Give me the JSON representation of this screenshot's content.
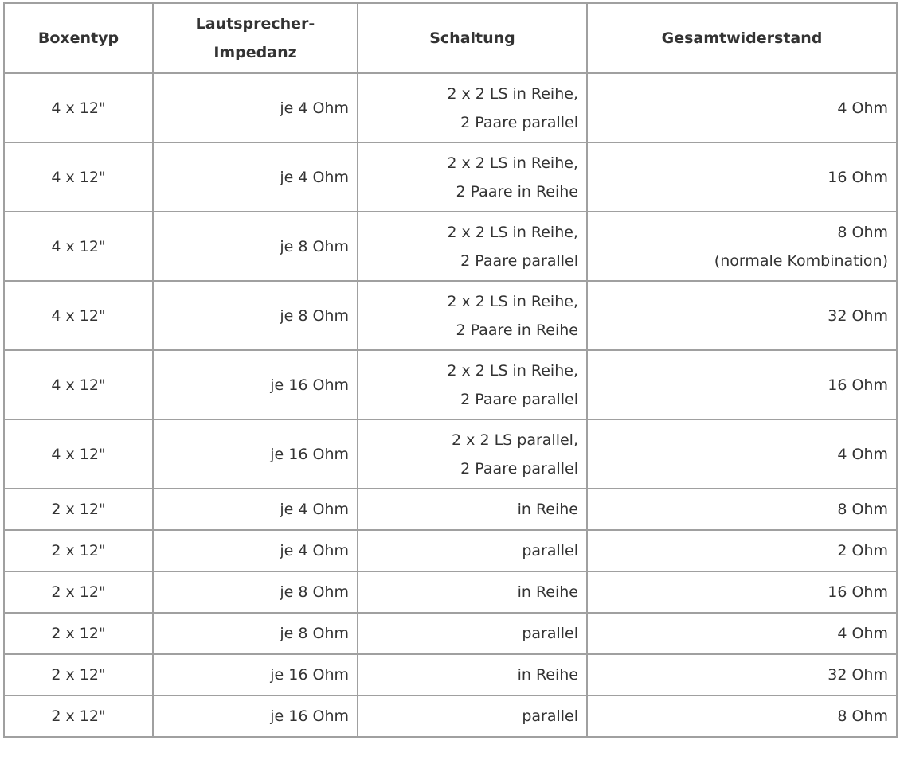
{
  "table": {
    "headers": [
      "Boxentyp",
      "Lautsprecher-\nImpedanz",
      "Schaltung",
      "Gesamtwiderstand"
    ],
    "rows": [
      [
        "4 x 12\"",
        "je 4 Ohm",
        "2 x 2 LS in Reihe,\n2 Paare parallel",
        "4 Ohm"
      ],
      [
        "4 x 12\"",
        "je 4 Ohm",
        "2 x 2 LS in Reihe,\n2 Paare in Reihe",
        "16 Ohm"
      ],
      [
        "4 x 12\"",
        "je 8 Ohm",
        "2 x 2 LS in Reihe,\n2 Paare parallel",
        "8 Ohm\n(normale Kombination)"
      ],
      [
        "4 x 12\"",
        "je 8 Ohm",
        "2 x 2 LS in Reihe,\n2 Paare in Reihe",
        "32 Ohm"
      ],
      [
        "4 x 12\"",
        "je 16 Ohm",
        "2 x 2 LS in Reihe,\n2 Paare parallel",
        "16 Ohm"
      ],
      [
        "4 x 12\"",
        "je 16 Ohm",
        "2 x 2 LS parallel,\n2 Paare parallel",
        "4 Ohm"
      ],
      [
        "2 x 12\"",
        "je 4 Ohm",
        "in Reihe",
        "8 Ohm"
      ],
      [
        "2 x 12\"",
        "je 4 Ohm",
        "parallel",
        "2 Ohm"
      ],
      [
        "2 x 12\"",
        "je 8 Ohm",
        "in Reihe",
        "16 Ohm"
      ],
      [
        "2 x 12\"",
        "je 8 Ohm",
        "parallel",
        "4 Ohm"
      ],
      [
        "2 x 12\"",
        "je 16 Ohm",
        "in Reihe",
        "32 Ohm"
      ],
      [
        "2 x 12\"",
        "je 16 Ohm",
        "parallel",
        "8 Ohm"
      ]
    ]
  }
}
